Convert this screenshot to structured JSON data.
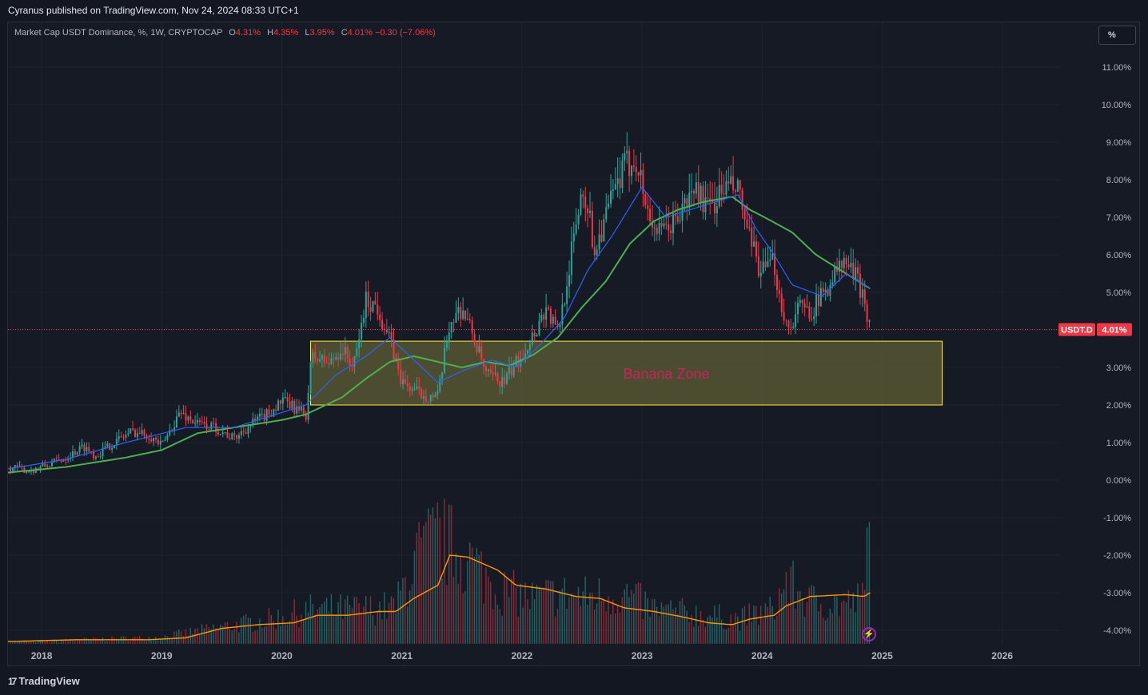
{
  "publisher_line": "Cyranus published on TradingView.com, Nov 24, 2024 08:33 UTC+1",
  "legend": {
    "symbol": "Market Cap USDT Dominance, %, 1W, CRYPTOCAP",
    "o_label": "O",
    "o_value": "4.31%",
    "h_label": "H",
    "h_value": "4.35%",
    "l_label": "L",
    "l_value": "3.95%",
    "c_label": "C",
    "c_value": "4.01%",
    "change": "−0.30 (−7.06%)"
  },
  "scale_button": "%",
  "footer_brand": "TradingView",
  "colors": {
    "up": "#26a69a",
    "down": "#f23645",
    "ma_fast": "#2962ff",
    "ma_slow": "#4caf50",
    "volume_ma": "#ff9800",
    "zone_fill": "#5a5a33",
    "zone_border": "#ffeb3b",
    "zone_text": "#d81b60",
    "background": "#131722",
    "grid": "#1f2330"
  },
  "chart_data": {
    "type": "candlestick",
    "title": "Market Cap USDT Dominance, %, 1W, CRYPTOCAP",
    "y_axis": {
      "unit": "%",
      "ticks": [
        "11.00%",
        "10.00%",
        "9.00%",
        "8.00%",
        "7.00%",
        "6.00%",
        "5.00%",
        "4.00%",
        "3.00%",
        "2.00%",
        "1.00%",
        "0.00%",
        "-1.00%",
        "-2.00%",
        "-3.00%",
        "-4.00%"
      ],
      "tick_values": [
        11,
        10,
        9,
        8,
        7,
        6,
        5,
        4,
        3,
        2,
        1,
        0,
        -1,
        -2,
        -3,
        -4
      ]
    },
    "x_axis": {
      "ticks": [
        "2018",
        "2019",
        "2020",
        "2021",
        "2022",
        "2023",
        "2024",
        "2025",
        "2026"
      ],
      "tick_years": [
        2018,
        2019,
        2020,
        2021,
        2022,
        2023,
        2024,
        2025,
        2026
      ],
      "range": [
        2017.72,
        2026.12
      ]
    },
    "price_path": [
      [
        2017.72,
        0.35
      ],
      [
        2017.9,
        0.25
      ],
      [
        2018.05,
        0.4
      ],
      [
        2018.2,
        0.6
      ],
      [
        2018.35,
        0.9
      ],
      [
        2018.45,
        0.65
      ],
      [
        2018.6,
        1.0
      ],
      [
        2018.75,
        1.3
      ],
      [
        2018.9,
        1.2
      ],
      [
        2019.0,
        0.9
      ],
      [
        2019.15,
        1.8
      ],
      [
        2019.3,
        1.5
      ],
      [
        2019.45,
        1.4
      ],
      [
        2019.6,
        1.1
      ],
      [
        2019.75,
        1.5
      ],
      [
        2019.9,
        1.8
      ],
      [
        2020.0,
        2.1
      ],
      [
        2020.12,
        1.9
      ],
      [
        2020.2,
        1.7
      ],
      [
        2020.25,
        3.3
      ],
      [
        2020.4,
        3.1
      ],
      [
        2020.5,
        3.5
      ],
      [
        2020.6,
        3.0
      ],
      [
        2020.7,
        4.8
      ],
      [
        2020.8,
        4.6
      ],
      [
        2020.9,
        3.7
      ],
      [
        2021.0,
        2.6
      ],
      [
        2021.15,
        2.3
      ],
      [
        2021.3,
        2.2
      ],
      [
        2021.4,
        4.2
      ],
      [
        2021.5,
        4.6
      ],
      [
        2021.6,
        3.8
      ],
      [
        2021.7,
        2.8
      ],
      [
        2021.85,
        2.6
      ],
      [
        2021.95,
        3.1
      ],
      [
        2022.1,
        3.9
      ],
      [
        2022.2,
        4.6
      ],
      [
        2022.3,
        3.9
      ],
      [
        2022.4,
        5.8
      ],
      [
        2022.5,
        7.8
      ],
      [
        2022.55,
        7.3
      ],
      [
        2022.6,
        6.1
      ],
      [
        2022.75,
        7.5
      ],
      [
        2022.85,
        8.3
      ],
      [
        2022.95,
        8.6
      ],
      [
        2023.05,
        7.1
      ],
      [
        2023.15,
        6.5
      ],
      [
        2023.3,
        7.0
      ],
      [
        2023.45,
        7.8
      ],
      [
        2023.55,
        7.2
      ],
      [
        2023.7,
        7.8
      ],
      [
        2023.8,
        7.7
      ],
      [
        2023.9,
        6.3
      ],
      [
        2024.0,
        5.5
      ],
      [
        2024.1,
        5.8
      ],
      [
        2024.15,
        4.8
      ],
      [
        2024.22,
        4.0
      ],
      [
        2024.3,
        4.6
      ],
      [
        2024.4,
        4.5
      ],
      [
        2024.5,
        4.9
      ],
      [
        2024.6,
        5.5
      ],
      [
        2024.7,
        5.8
      ],
      [
        2024.78,
        5.4
      ],
      [
        2024.85,
        4.9
      ],
      [
        2024.9,
        4.01
      ]
    ],
    "ma_fast_path": [
      [
        2017.72,
        0.3
      ],
      [
        2018.2,
        0.55
      ],
      [
        2018.7,
        1.0
      ],
      [
        2019.2,
        1.4
      ],
      [
        2019.6,
        1.4
      ],
      [
        2020.0,
        1.8
      ],
      [
        2020.2,
        2.0
      ],
      [
        2020.45,
        2.8
      ],
      [
        2020.7,
        3.3
      ],
      [
        2020.9,
        3.8
      ],
      [
        2021.1,
        3.2
      ],
      [
        2021.3,
        2.6
      ],
      [
        2021.5,
        2.9
      ],
      [
        2021.75,
        3.2
      ],
      [
        2021.95,
        3.0
      ],
      [
        2022.15,
        3.6
      ],
      [
        2022.35,
        4.3
      ],
      [
        2022.55,
        5.6
      ],
      [
        2022.75,
        6.5
      ],
      [
        2023.0,
        7.8
      ],
      [
        2023.2,
        7.0
      ],
      [
        2023.4,
        7.2
      ],
      [
        2023.6,
        7.4
      ],
      [
        2023.8,
        7.6
      ],
      [
        2023.95,
        6.7
      ],
      [
        2024.1,
        6.0
      ],
      [
        2024.25,
        5.2
      ],
      [
        2024.5,
        4.9
      ],
      [
        2024.7,
        5.5
      ],
      [
        2024.9,
        5.1
      ]
    ],
    "ma_slow_path": [
      [
        2017.72,
        0.2
      ],
      [
        2018.2,
        0.35
      ],
      [
        2018.7,
        0.6
      ],
      [
        2019.0,
        0.8
      ],
      [
        2019.3,
        1.25
      ],
      [
        2019.7,
        1.45
      ],
      [
        2020.0,
        1.6
      ],
      [
        2020.2,
        1.75
      ],
      [
        2020.5,
        2.2
      ],
      [
        2020.7,
        2.7
      ],
      [
        2020.9,
        3.15
      ],
      [
        2021.1,
        3.3
      ],
      [
        2021.3,
        3.15
      ],
      [
        2021.5,
        3.0
      ],
      [
        2021.7,
        3.15
      ],
      [
        2021.9,
        3.05
      ],
      [
        2022.1,
        3.35
      ],
      [
        2022.3,
        3.8
      ],
      [
        2022.5,
        4.6
      ],
      [
        2022.7,
        5.3
      ],
      [
        2022.9,
        6.3
      ],
      [
        2023.1,
        6.9
      ],
      [
        2023.3,
        7.2
      ],
      [
        2023.5,
        7.4
      ],
      [
        2023.75,
        7.55
      ],
      [
        2023.9,
        7.2
      ],
      [
        2024.05,
        6.95
      ],
      [
        2024.25,
        6.6
      ],
      [
        2024.45,
        6.0
      ],
      [
        2024.65,
        5.6
      ],
      [
        2024.9,
        5.1
      ]
    ],
    "volume_ma_path": [
      [
        2017.72,
        -4.3
      ],
      [
        2018.3,
        -4.25
      ],
      [
        2018.9,
        -4.25
      ],
      [
        2019.2,
        -4.2
      ],
      [
        2019.5,
        -3.95
      ],
      [
        2019.8,
        -3.85
      ],
      [
        2020.1,
        -3.8
      ],
      [
        2020.3,
        -3.6
      ],
      [
        2020.55,
        -3.6
      ],
      [
        2020.8,
        -3.5
      ],
      [
        2020.95,
        -3.5
      ],
      [
        2021.1,
        -3.15
      ],
      [
        2021.3,
        -2.8
      ],
      [
        2021.4,
        -2.0
      ],
      [
        2021.55,
        -2.05
      ],
      [
        2021.8,
        -2.4
      ],
      [
        2021.95,
        -2.8
      ],
      [
        2022.2,
        -2.9
      ],
      [
        2022.45,
        -3.1
      ],
      [
        2022.65,
        -3.15
      ],
      [
        2022.85,
        -3.4
      ],
      [
        2023.1,
        -3.5
      ],
      [
        2023.35,
        -3.65
      ],
      [
        2023.55,
        -3.8
      ],
      [
        2023.75,
        -3.85
      ],
      [
        2023.9,
        -3.7
      ],
      [
        2024.1,
        -3.6
      ],
      [
        2024.2,
        -3.35
      ],
      [
        2024.4,
        -3.1
      ],
      [
        2024.7,
        -3.05
      ],
      [
        2024.85,
        -3.1
      ],
      [
        2024.9,
        -3.0
      ]
    ],
    "volume_peak_levels": [
      [
        2017.72,
        -4.3
      ],
      [
        2018.3,
        -4.2
      ],
      [
        2019.0,
        -4.1
      ],
      [
        2019.5,
        -3.7
      ],
      [
        2019.9,
        -3.4
      ],
      [
        2020.25,
        -3.0
      ],
      [
        2020.7,
        -3.0
      ],
      [
        2020.95,
        -2.9
      ],
      [
        2021.1,
        -1.1
      ],
      [
        2021.3,
        -0.2
      ],
      [
        2021.55,
        -1.0
      ],
      [
        2021.8,
        -2.2
      ],
      [
        2022.1,
        -2.6
      ],
      [
        2022.3,
        -2.4
      ],
      [
        2022.5,
        -2.5
      ],
      [
        2022.85,
        -2.4
      ],
      [
        2023.1,
        -3.0
      ],
      [
        2023.5,
        -3.2
      ],
      [
        2023.8,
        -3.4
      ],
      [
        2024.1,
        -3.0
      ],
      [
        2024.2,
        -1.9
      ],
      [
        2024.4,
        -2.7
      ],
      [
        2024.7,
        -2.8
      ],
      [
        2024.85,
        -2.6
      ],
      [
        2024.88,
        -0.3
      ]
    ],
    "volume_floor": -4.36,
    "series": [
      {
        "name": "USDT.D",
        "last_value": 4.01,
        "last_label": "4.01%"
      }
    ],
    "price_line_value": 4.01,
    "rectangle": {
      "label": "Banana Zone",
      "x_start": 2020.24,
      "x_end": 2025.5,
      "y_low": 2.0,
      "y_high": 3.7
    }
  }
}
